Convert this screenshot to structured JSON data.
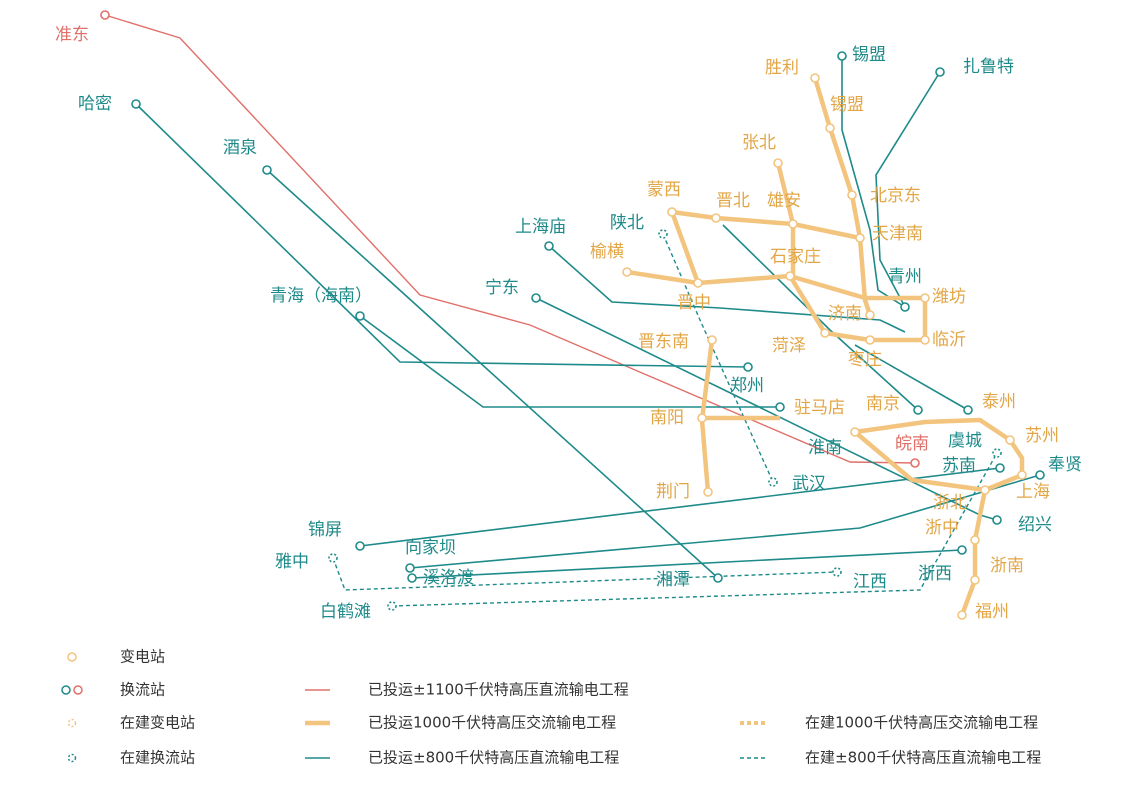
{
  "stations": [
    "准东",
    "哈密",
    "酒泉",
    "青海（海南）",
    "宁东",
    "上海庙",
    "陕北",
    "锡盟",
    "扎鲁特",
    "胜利",
    "锡盟",
    "张北",
    "蒙西",
    "晋北",
    "雄安",
    "北京东",
    "天津南",
    "榆横",
    "石家庄",
    "晋中",
    "青州",
    "潍坊",
    "济南",
    "临沂",
    "菏泽",
    "晋东南",
    "枣庄",
    "郑州",
    "南京",
    "泰州",
    "驻马店",
    "南阳",
    "淮南",
    "皖南",
    "虞城",
    "苏州",
    "苏南",
    "奉贤",
    "荆门",
    "武汉",
    "浙北",
    "上海",
    "浙中",
    "绍兴",
    "锦屏",
    "向家坝",
    "雅中",
    "溪洛渡",
    "湘潭",
    "江西",
    "浙西",
    "浙南",
    "白鹤滩",
    "福州"
  ],
  "legend": [
    "变电站",
    "换流站",
    "在建变电站",
    "在建换流站",
    "已投运±1100千伏特高压直流输电工程",
    "已投运1000千伏特高压交流输电工程",
    "已投运±800千伏特高压直流输电工程",
    "在建1000千伏特高压交流输电工程",
    "在建±800千伏特高压直流输电工程"
  ]
}
